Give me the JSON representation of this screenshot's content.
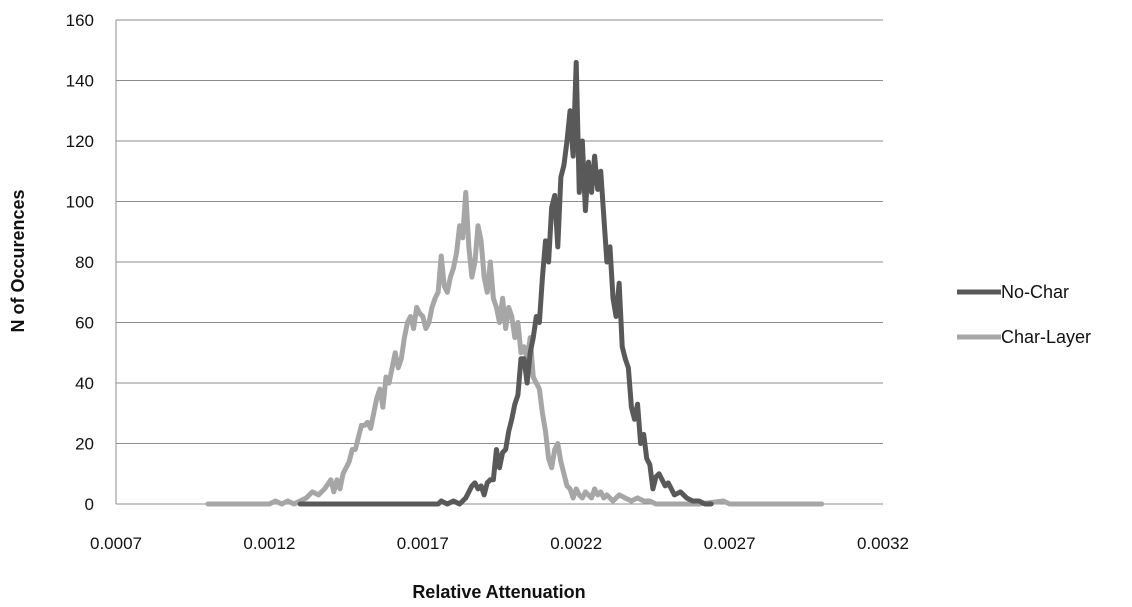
{
  "chart_data": {
    "type": "line",
    "title": "",
    "xlabel": "Relative Attenuation",
    "ylabel": "N of Occurences",
    "xlim": [
      0.0007,
      0.0032
    ],
    "ylim": [
      0,
      160
    ],
    "x_ticks": [
      "0.0007",
      "0.0012",
      "0.0017",
      "0.0022",
      "0.0027",
      "0.0032"
    ],
    "y_ticks": [
      "0",
      "20",
      "40",
      "60",
      "80",
      "100",
      "120",
      "140",
      "160"
    ],
    "grid": "horizontal",
    "legend_position": "right",
    "series": [
      {
        "name": "No-Char",
        "color": "#595959",
        "points": [
          [
            0.0013,
            0
          ],
          [
            0.0014,
            0
          ],
          [
            0.0015,
            0
          ],
          [
            0.0016,
            0
          ],
          [
            0.0017,
            0
          ],
          [
            0.00175,
            0
          ],
          [
            0.00176,
            1
          ],
          [
            0.00178,
            0
          ],
          [
            0.0018,
            1
          ],
          [
            0.00182,
            0
          ],
          [
            0.00184,
            2
          ],
          [
            0.00186,
            6
          ],
          [
            0.00187,
            7
          ],
          [
            0.00188,
            5
          ],
          [
            0.00189,
            6
          ],
          [
            0.0019,
            3
          ],
          [
            0.00191,
            7
          ],
          [
            0.00192,
            8
          ],
          [
            0.00193,
            8
          ],
          [
            0.00194,
            18
          ],
          [
            0.00195,
            12
          ],
          [
            0.00196,
            17
          ],
          [
            0.00197,
            18
          ],
          [
            0.00198,
            24
          ],
          [
            0.00199,
            28
          ],
          [
            0.002,
            33
          ],
          [
            0.00201,
            36
          ],
          [
            0.00202,
            48
          ],
          [
            0.00203,
            48
          ],
          [
            0.00204,
            40
          ],
          [
            0.00205,
            50
          ],
          [
            0.00206,
            55
          ],
          [
            0.00207,
            62
          ],
          [
            0.00208,
            60
          ],
          [
            0.00209,
            75
          ],
          [
            0.0021,
            87
          ],
          [
            0.00211,
            80
          ],
          [
            0.00212,
            98
          ],
          [
            0.00213,
            102
          ],
          [
            0.00214,
            85
          ],
          [
            0.00215,
            108
          ],
          [
            0.00216,
            112
          ],
          [
            0.00217,
            120
          ],
          [
            0.00218,
            130
          ],
          [
            0.00219,
            115
          ],
          [
            0.0022,
            146
          ],
          [
            0.00221,
            103
          ],
          [
            0.00222,
            120
          ],
          [
            0.00223,
            97
          ],
          [
            0.00224,
            113
          ],
          [
            0.00225,
            103
          ],
          [
            0.00226,
            115
          ],
          [
            0.00227,
            104
          ],
          [
            0.00228,
            110
          ],
          [
            0.00229,
            95
          ],
          [
            0.0023,
            80
          ],
          [
            0.00231,
            85
          ],
          [
            0.00232,
            68
          ],
          [
            0.00233,
            62
          ],
          [
            0.00234,
            73
          ],
          [
            0.00235,
            52
          ],
          [
            0.00236,
            48
          ],
          [
            0.00237,
            45
          ],
          [
            0.00238,
            32
          ],
          [
            0.00239,
            28
          ],
          [
            0.0024,
            33
          ],
          [
            0.00241,
            20
          ],
          [
            0.00242,
            23
          ],
          [
            0.00243,
            15
          ],
          [
            0.00244,
            13
          ],
          [
            0.00245,
            5
          ],
          [
            0.00246,
            9
          ],
          [
            0.00247,
            10
          ],
          [
            0.00248,
            8
          ],
          [
            0.00249,
            6
          ],
          [
            0.0025,
            7
          ],
          [
            0.00252,
            3
          ],
          [
            0.00254,
            4
          ],
          [
            0.00256,
            2
          ],
          [
            0.00258,
            1
          ],
          [
            0.0026,
            1
          ],
          [
            0.00262,
            0
          ],
          [
            0.00264,
            0
          ]
        ]
      },
      {
        "name": "Char-Layer",
        "color": "#a6a6a6",
        "points": [
          [
            0.001,
            0
          ],
          [
            0.0011,
            0
          ],
          [
            0.0012,
            0
          ],
          [
            0.00122,
            1
          ],
          [
            0.00124,
            0
          ],
          [
            0.00126,
            1
          ],
          [
            0.00128,
            0
          ],
          [
            0.0013,
            1
          ],
          [
            0.00132,
            2
          ],
          [
            0.00134,
            4
          ],
          [
            0.00136,
            3
          ],
          [
            0.00138,
            5
          ],
          [
            0.0014,
            8
          ],
          [
            0.00141,
            4
          ],
          [
            0.00142,
            8
          ],
          [
            0.00143,
            5
          ],
          [
            0.00144,
            10
          ],
          [
            0.00145,
            12
          ],
          [
            0.00146,
            14
          ],
          [
            0.00147,
            18
          ],
          [
            0.00148,
            18
          ],
          [
            0.00149,
            22
          ],
          [
            0.0015,
            26
          ],
          [
            0.00151,
            26
          ],
          [
            0.00152,
            27
          ],
          [
            0.00153,
            25
          ],
          [
            0.00154,
            30
          ],
          [
            0.00155,
            35
          ],
          [
            0.00156,
            38
          ],
          [
            0.00157,
            32
          ],
          [
            0.00158,
            42
          ],
          [
            0.00159,
            40
          ],
          [
            0.0016,
            45
          ],
          [
            0.00161,
            50
          ],
          [
            0.00162,
            45
          ],
          [
            0.00163,
            48
          ],
          [
            0.00164,
            55
          ],
          [
            0.00165,
            60
          ],
          [
            0.00166,
            62
          ],
          [
            0.00167,
            58
          ],
          [
            0.00168,
            65
          ],
          [
            0.00169,
            63
          ],
          [
            0.0017,
            62
          ],
          [
            0.00171,
            58
          ],
          [
            0.00172,
            60
          ],
          [
            0.00173,
            65
          ],
          [
            0.00174,
            68
          ],
          [
            0.00175,
            70
          ],
          [
            0.00176,
            82
          ],
          [
            0.00177,
            72
          ],
          [
            0.00178,
            70
          ],
          [
            0.00179,
            75
          ],
          [
            0.0018,
            78
          ],
          [
            0.00181,
            83
          ],
          [
            0.00182,
            92
          ],
          [
            0.00183,
            88
          ],
          [
            0.00184,
            103
          ],
          [
            0.00185,
            85
          ],
          [
            0.00186,
            75
          ],
          [
            0.00187,
            80
          ],
          [
            0.00188,
            92
          ],
          [
            0.00189,
            87
          ],
          [
            0.0019,
            75
          ],
          [
            0.00191,
            70
          ],
          [
            0.00192,
            80
          ],
          [
            0.00193,
            68
          ],
          [
            0.00194,
            65
          ],
          [
            0.00195,
            60
          ],
          [
            0.00196,
            68
          ],
          [
            0.00197,
            58
          ],
          [
            0.00198,
            65
          ],
          [
            0.00199,
            62
          ],
          [
            0.002,
            55
          ],
          [
            0.00201,
            60
          ],
          [
            0.00202,
            50
          ],
          [
            0.00203,
            52
          ],
          [
            0.00204,
            48
          ],
          [
            0.00205,
            55
          ],
          [
            0.00206,
            42
          ],
          [
            0.00207,
            40
          ],
          [
            0.00208,
            38
          ],
          [
            0.00209,
            30
          ],
          [
            0.0021,
            24
          ],
          [
            0.00211,
            15
          ],
          [
            0.00212,
            12
          ],
          [
            0.00213,
            18
          ],
          [
            0.00214,
            20
          ],
          [
            0.00215,
            14
          ],
          [
            0.00216,
            10
          ],
          [
            0.00217,
            6
          ],
          [
            0.00218,
            5
          ],
          [
            0.00219,
            2
          ],
          [
            0.0022,
            5
          ],
          [
            0.00221,
            3
          ],
          [
            0.00222,
            2
          ],
          [
            0.00223,
            4
          ],
          [
            0.00224,
            3
          ],
          [
            0.00225,
            2
          ],
          [
            0.00226,
            5
          ],
          [
            0.00227,
            3
          ],
          [
            0.00228,
            4
          ],
          [
            0.00229,
            2
          ],
          [
            0.0023,
            3
          ],
          [
            0.00232,
            1
          ],
          [
            0.00234,
            3
          ],
          [
            0.00236,
            2
          ],
          [
            0.00238,
            1
          ],
          [
            0.0024,
            2
          ],
          [
            0.00242,
            1
          ],
          [
            0.00244,
            1
          ],
          [
            0.00246,
            0
          ],
          [
            0.0025,
            0
          ],
          [
            0.0026,
            0
          ],
          [
            0.00268,
            1
          ],
          [
            0.0027,
            0
          ],
          [
            0.0028,
            0
          ],
          [
            0.0029,
            0
          ],
          [
            0.003,
            0
          ]
        ]
      }
    ]
  }
}
